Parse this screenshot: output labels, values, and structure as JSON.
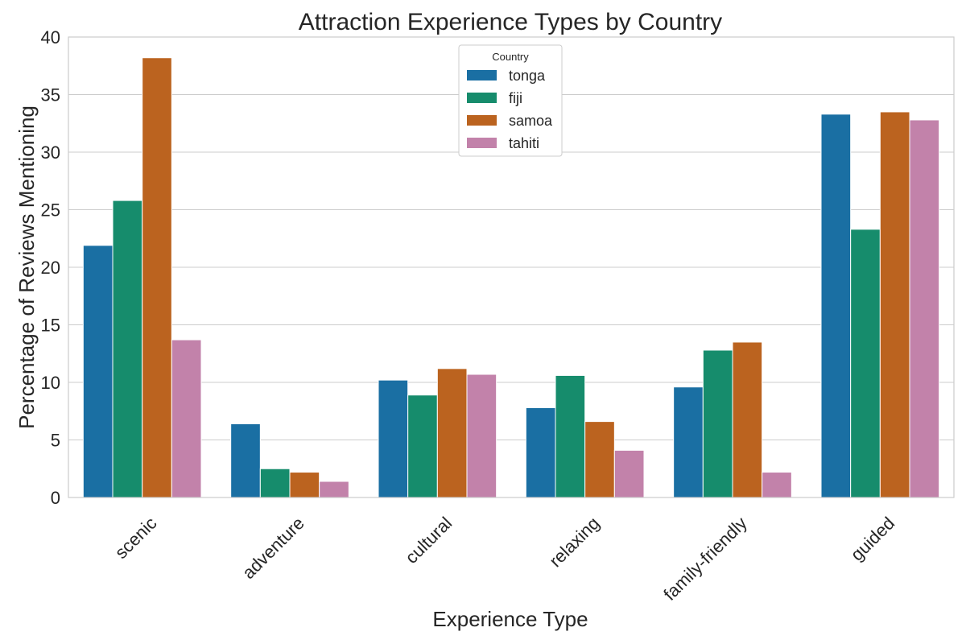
{
  "chart_data": {
    "type": "bar",
    "title": "Attraction Experience Types by Country",
    "xlabel": "Experience Type",
    "ylabel": "Percentage of Reviews Mentioning",
    "categories": [
      "scenic",
      "adventure",
      "cultural",
      "relaxing",
      "family-friendly",
      "guided"
    ],
    "series": [
      {
        "name": "tonga",
        "color": "#1a6fa3",
        "values": [
          21.9,
          6.4,
          10.2,
          7.8,
          9.6,
          33.3
        ]
      },
      {
        "name": "fiji",
        "color": "#168c6c",
        "values": [
          25.8,
          2.5,
          8.9,
          10.6,
          12.8,
          23.3
        ]
      },
      {
        "name": "samoa",
        "color": "#bb631f",
        "values": [
          38.2,
          2.2,
          11.2,
          6.6,
          13.5,
          33.5
        ]
      },
      {
        "name": "tahiti",
        "color": "#c282aa",
        "values": [
          13.7,
          1.4,
          10.7,
          4.1,
          2.2,
          32.8
        ]
      }
    ],
    "ylim": [
      0,
      40
    ],
    "yticks": [
      0,
      5,
      10,
      15,
      20,
      25,
      30,
      35,
      40
    ],
    "grid": true,
    "legend": {
      "title": "Country",
      "placement": "top-center"
    }
  }
}
